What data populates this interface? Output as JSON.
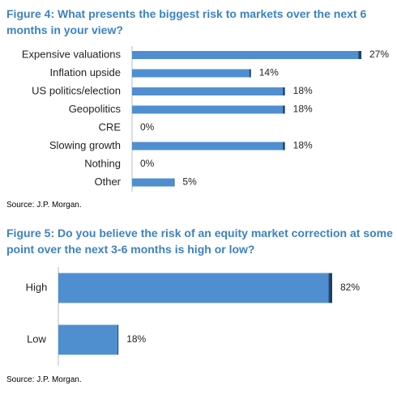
{
  "chart_data": [
    {
      "type": "bar",
      "orientation": "horizontal",
      "title": "Figure 4: What presents the biggest risk to markets over the next 6 months in your view?",
      "categories": [
        "Expensive valuations",
        "Inflation upside",
        "US politics/election",
        "Geopolitics",
        "CRE",
        "Slowing growth",
        "Nothing",
        "Other"
      ],
      "values": [
        27,
        14,
        18,
        18,
        0,
        18,
        0,
        5
      ],
      "value_labels": [
        "27%",
        "14%",
        "18%",
        "18%",
        "0%",
        "18%",
        "0%",
        "5%"
      ],
      "color": "#4f8fd0",
      "source": "Source: J.P. Morgan."
    },
    {
      "type": "bar",
      "orientation": "horizontal",
      "title": "Figure 5: Do you believe the risk of an equity market correction at some point over the next 3-6 months is high or low?",
      "categories": [
        "High",
        "Low"
      ],
      "values": [
        82,
        18
      ],
      "value_labels": [
        "82%",
        "18%"
      ],
      "color": "#4f8fd0",
      "source": "Source: J.P. Morgan."
    }
  ]
}
